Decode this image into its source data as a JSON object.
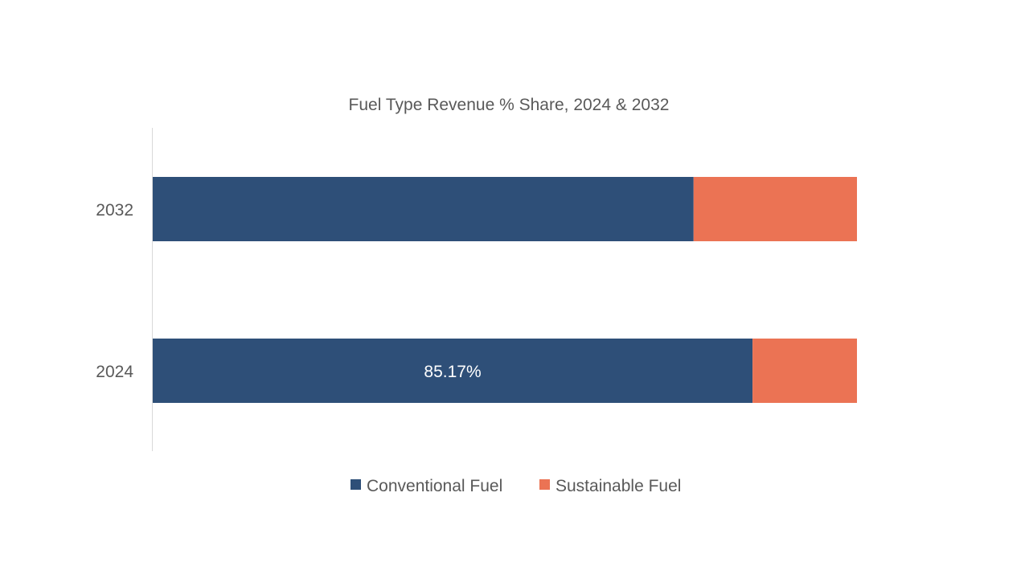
{
  "chart_data": {
    "type": "bar",
    "orientation": "horizontal",
    "stacked": "100%",
    "title": "Fuel Type Revenue % Share, 2024 & 2032",
    "xlabel": "",
    "ylabel": "",
    "categories": [
      "2032",
      "2024"
    ],
    "series": [
      {
        "name": "Conventional Fuel",
        "color": "#2E4F78",
        "values": [
          76.8,
          85.17
        ]
      },
      {
        "name": "Sustainable Fuel",
        "color": "#EB7354",
        "values": [
          23.2,
          14.83
        ]
      }
    ],
    "data_labels": [
      {
        "category": "2024",
        "series": "Conventional Fuel",
        "text": "85.17%"
      }
    ],
    "xlim": [
      0,
      100
    ],
    "grid": false,
    "legend": "bottom"
  }
}
